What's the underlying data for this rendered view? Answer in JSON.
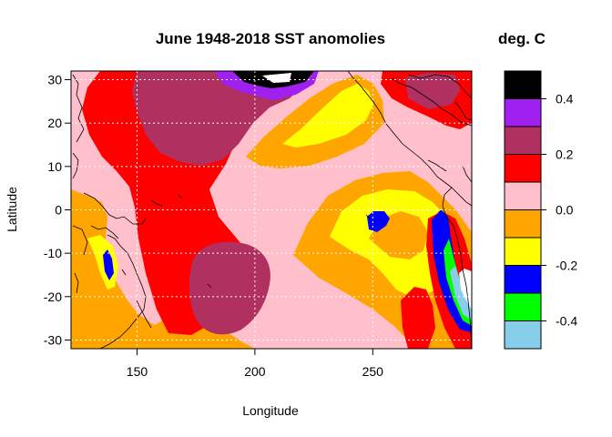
{
  "chart_data": {
    "type": "heatmap",
    "title": "June 1948-2018 SST anomolies",
    "xlabel": "Longitude",
    "ylabel": "Latitude",
    "xlim": [
      122,
      292
    ],
    "ylim": [
      -32,
      32
    ],
    "x_ticks": [
      150,
      200,
      250
    ],
    "y_ticks": [
      30,
      20,
      10,
      0,
      -10,
      -20,
      -30
    ],
    "grid": true,
    "legend": {
      "title": "deg. C",
      "placement": "right",
      "tick_labels": [
        0.4,
        0.2,
        0.0,
        -0.2,
        -0.4
      ],
      "levels": [
        {
          "from": 0.4,
          "to": 0.5,
          "color": "#000000"
        },
        {
          "from": 0.3,
          "to": 0.4,
          "color": "#A020F0"
        },
        {
          "from": 0.2,
          "to": 0.3,
          "color": "#B03060"
        },
        {
          "from": 0.1,
          "to": 0.2,
          "color": "#FF0000"
        },
        {
          "from": 0.0,
          "to": 0.1,
          "color": "#FFC0CB"
        },
        {
          "from": -0.1,
          "to": 0.0,
          "color": "#FFA500"
        },
        {
          "from": -0.2,
          "to": -0.1,
          "color": "#FFFF00"
        },
        {
          "from": -0.3,
          "to": -0.2,
          "color": "#0000FF"
        },
        {
          "from": -0.4,
          "to": -0.3,
          "color": "#00FF00"
        },
        {
          "from": -0.5,
          "to": -0.4,
          "color": "#87CEEB"
        }
      ]
    },
    "regions": [
      {
        "level": "pink",
        "desc": "background"
      },
      {
        "level": "orange",
        "desc": "western Pacific / Australia coast"
      },
      {
        "level": "red",
        "desc": "central tongue 150-230E"
      },
      {
        "level": "maroon",
        "desc": "north 165-210E, 15-32N"
      },
      {
        "level": "maroon",
        "desc": "south 170-205E, -8 to -28"
      },
      {
        "level": "purple",
        "desc": "north 185-235E, 25-32N"
      },
      {
        "level": "black",
        "desc": "north 190-215E, 30-32N"
      },
      {
        "level": "orange",
        "desc": "subtropical north 225-280E"
      },
      {
        "level": "yellow",
        "desc": "subtropical north 235-255E"
      },
      {
        "level": "orange",
        "desc": "eastern south 225-290E"
      },
      {
        "level": "yellow",
        "desc": "eastern south 235-280E"
      },
      {
        "level": "blue",
        "desc": "near 248E, 0"
      },
      {
        "level": "blue",
        "desc": "Peru coast strip"
      },
      {
        "level": "green",
        "desc": "Chile coast"
      },
      {
        "level": "skyblue",
        "desc": "Chile coast"
      }
    ]
  }
}
